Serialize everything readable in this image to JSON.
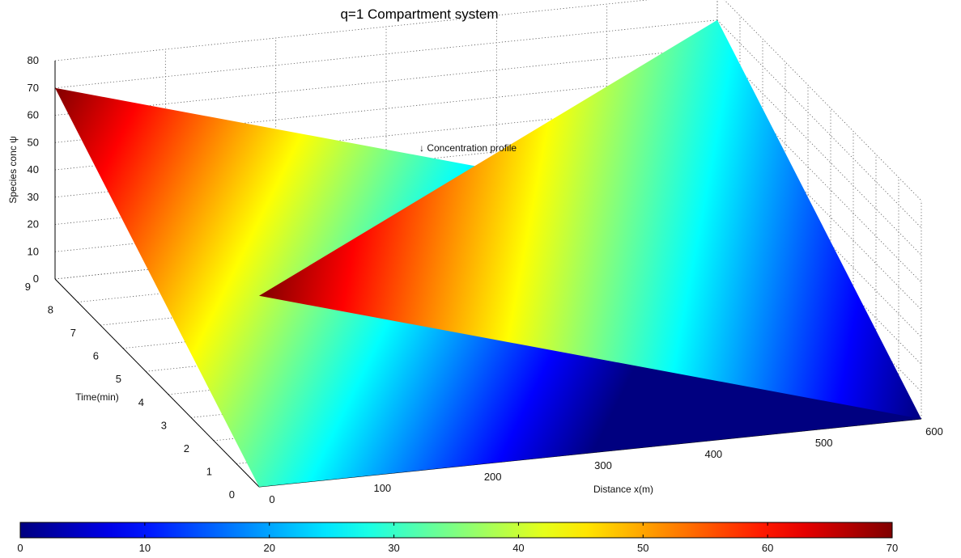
{
  "chart_data": {
    "type": "surface",
    "title": "q=1 Compartment system",
    "xlabel": "Distance x(m)",
    "ylabel": "Time(min)",
    "zlabel": "Species conc ψ",
    "annotation": "↓ Concentration profile",
    "xlim": [
      0,
      600
    ],
    "ylim": [
      0,
      9
    ],
    "zlim": [
      0,
      80
    ],
    "x_ticks": [
      0,
      100,
      200,
      300,
      400,
      500,
      600
    ],
    "y_ticks": [
      0,
      1,
      2,
      3,
      4,
      5,
      6,
      7,
      8,
      9
    ],
    "z_ticks": [
      0,
      10,
      20,
      30,
      40,
      50,
      60,
      70,
      80
    ],
    "grid": true,
    "colormap": "jet",
    "colorbar": {
      "orientation": "horizontal",
      "placement": "bottom",
      "range": [
        0,
        70
      ],
      "ticks": [
        0,
        10,
        20,
        30,
        40,
        50,
        60,
        70
      ]
    },
    "surfaces": [
      {
        "name": "",
        "corners": [
          {
            "x": 0,
            "t": 9,
            "c": 70
          },
          {
            "x": 600,
            "t": 9,
            "c": 0
          },
          {
            "x": 600,
            "t": 0,
            "c": 0
          },
          {
            "x": 0,
            "t": 0,
            "c": 0
          }
        ]
      },
      {
        "name": "",
        "corners": [
          {
            "x": 0,
            "t": 0,
            "c": 70
          },
          {
            "x": 600,
            "t": 9,
            "c": 70
          },
          {
            "x": 600,
            "t": 0,
            "c": 0
          }
        ]
      }
    ]
  }
}
